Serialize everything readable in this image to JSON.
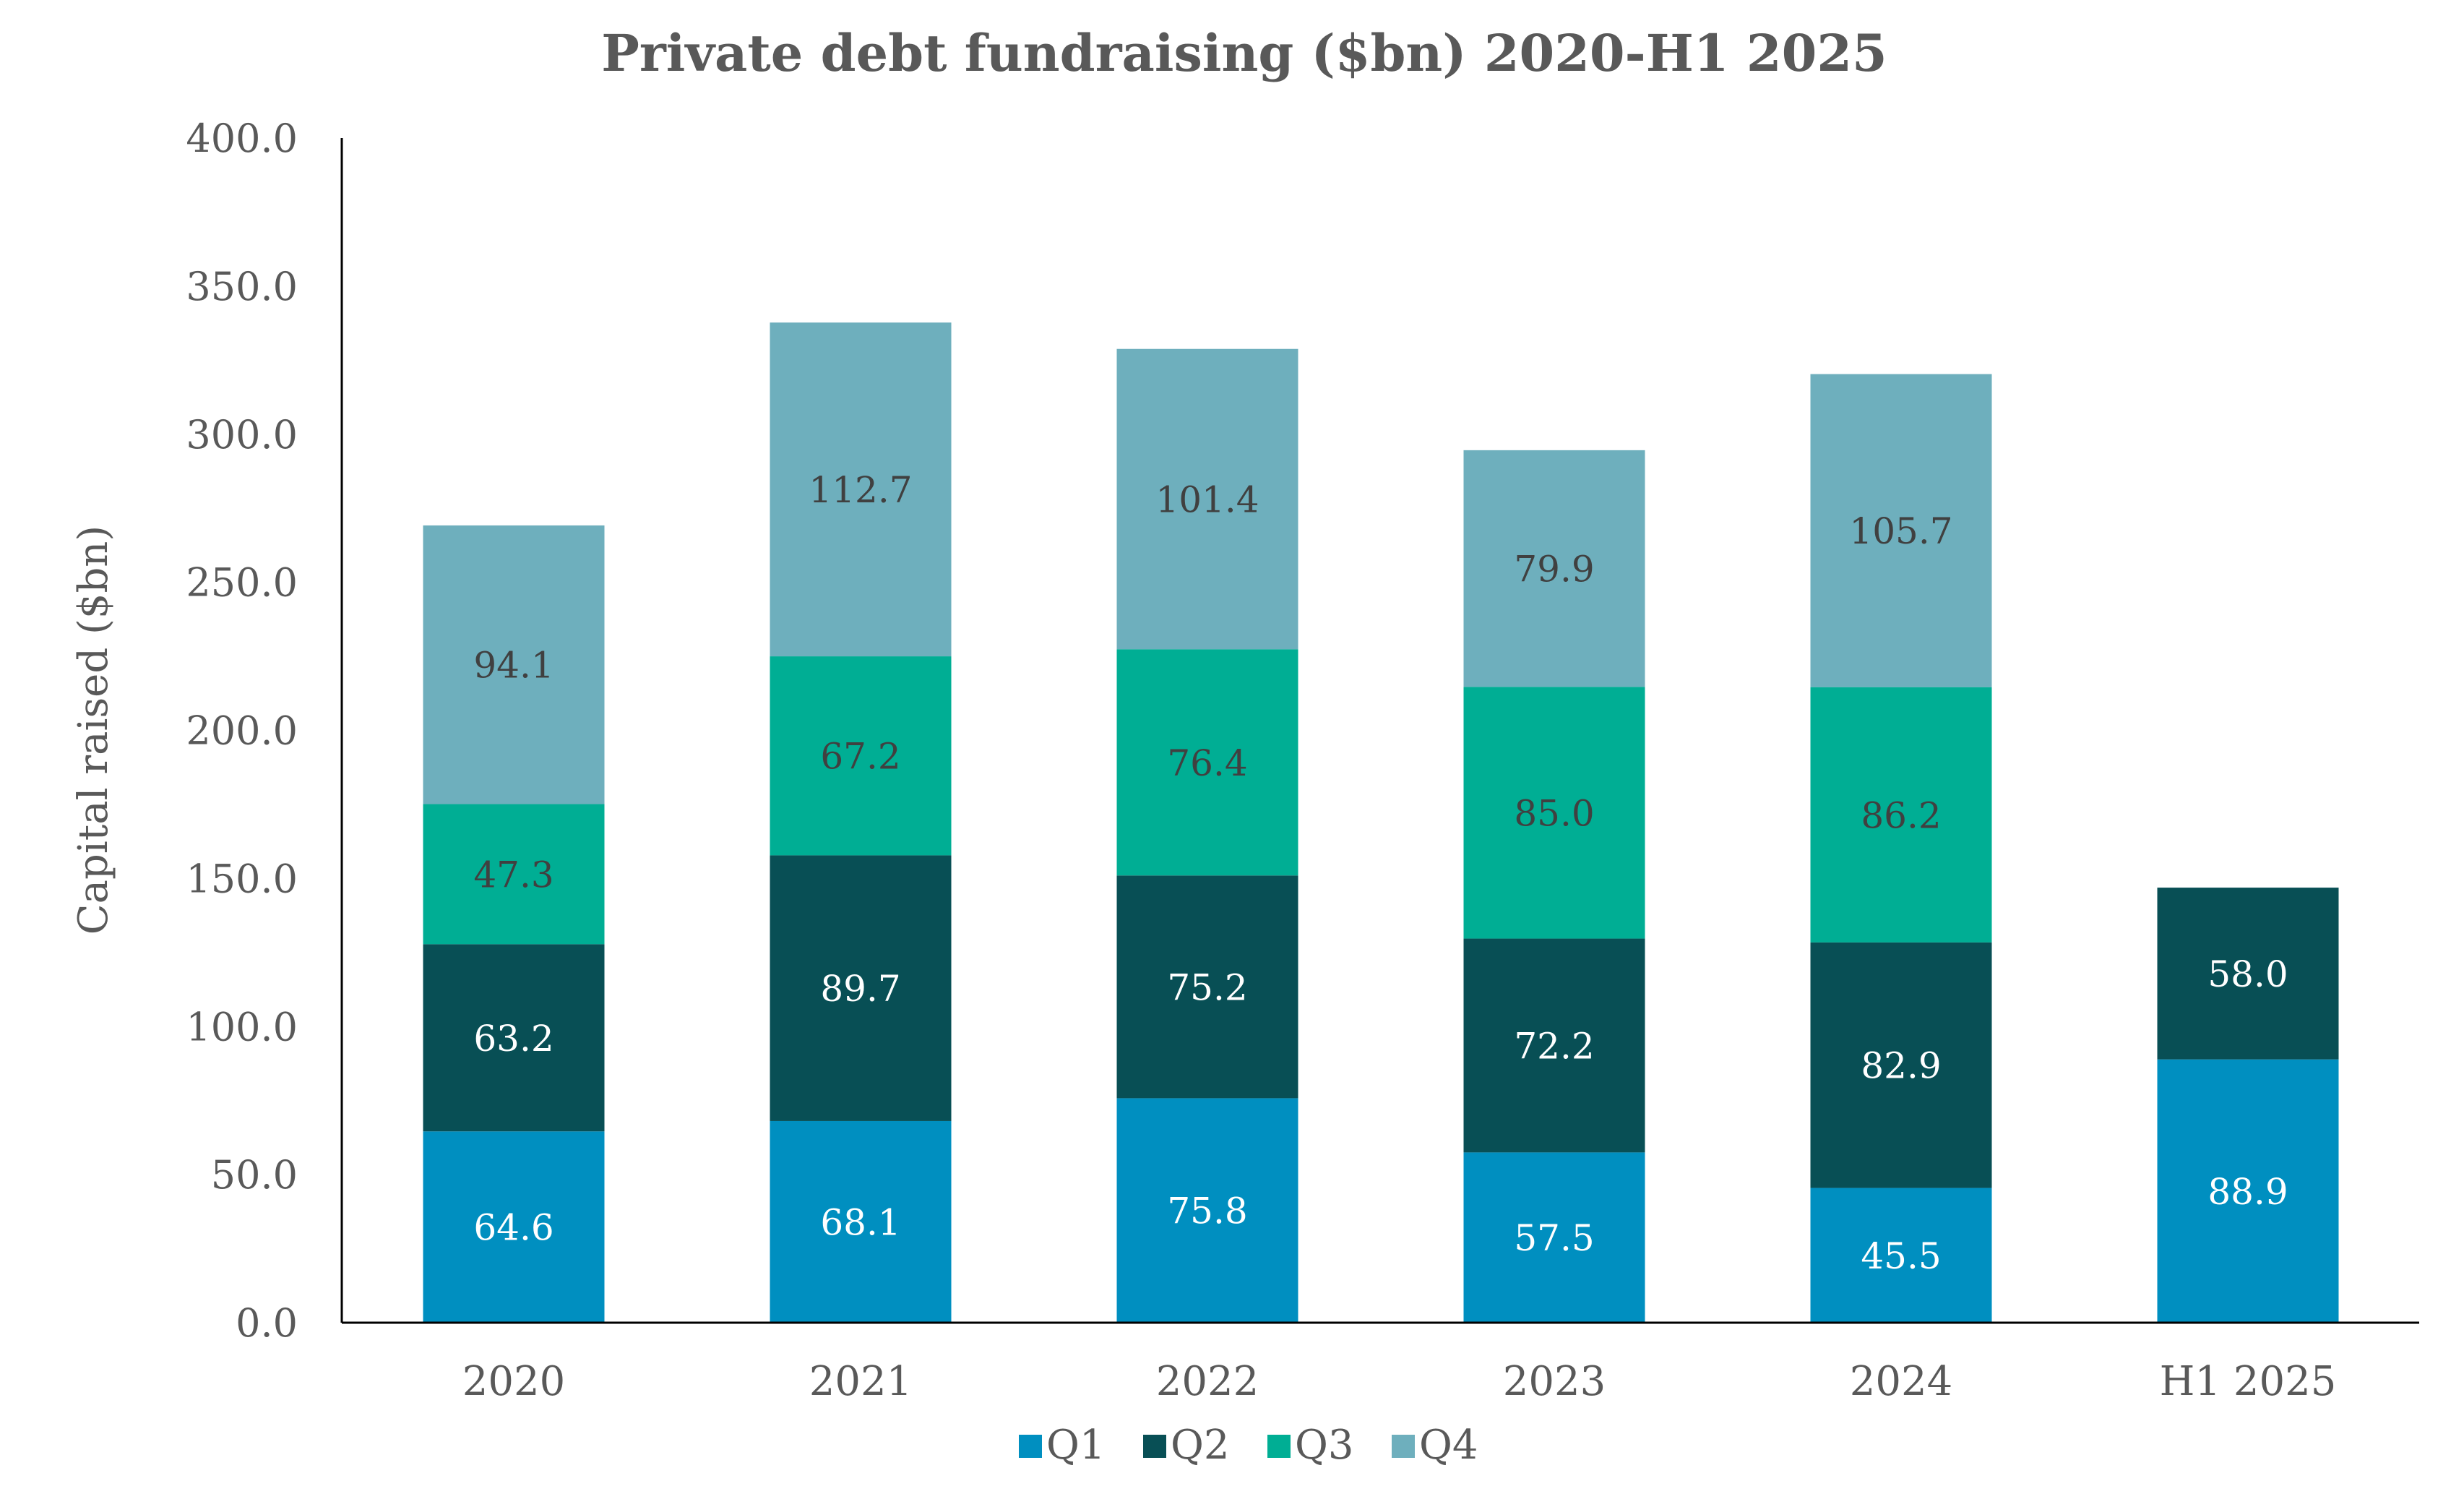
{
  "chart_data": {
    "type": "bar",
    "stacked": true,
    "title": "Private debt fundraising ($bn) 2020-H1 2025",
    "xlabel": "",
    "ylabel": "Capital raised ($bn)",
    "ylim": [
      0,
      400
    ],
    "yticks": [
      "0.0",
      "50.0",
      "100.0",
      "150.0",
      "200.0",
      "250.0",
      "300.0",
      "350.0",
      "400.0"
    ],
    "categories": [
      "2020",
      "2021",
      "2022",
      "2023",
      "2024",
      "H1 2025"
    ],
    "series": [
      {
        "name": "Q1",
        "color": "#008FC0",
        "label_color": "#ffffff",
        "values": [
          64.6,
          68.1,
          75.8,
          57.5,
          45.5,
          88.9
        ]
      },
      {
        "name": "Q2",
        "color": "#084F55",
        "label_color": "#ffffff",
        "values": [
          63.2,
          89.7,
          75.2,
          72.2,
          82.9,
          58.0
        ]
      },
      {
        "name": "Q3",
        "color": "#00AE94",
        "label_color": "#404040",
        "values": [
          47.3,
          67.2,
          76.4,
          85.0,
          86.2,
          null
        ]
      },
      {
        "name": "Q4",
        "color": "#6EAFBD",
        "label_color": "#404040",
        "values": [
          94.1,
          112.7,
          101.4,
          79.9,
          105.7,
          null
        ]
      }
    ],
    "grid": false,
    "legend": "bottom-center"
  }
}
